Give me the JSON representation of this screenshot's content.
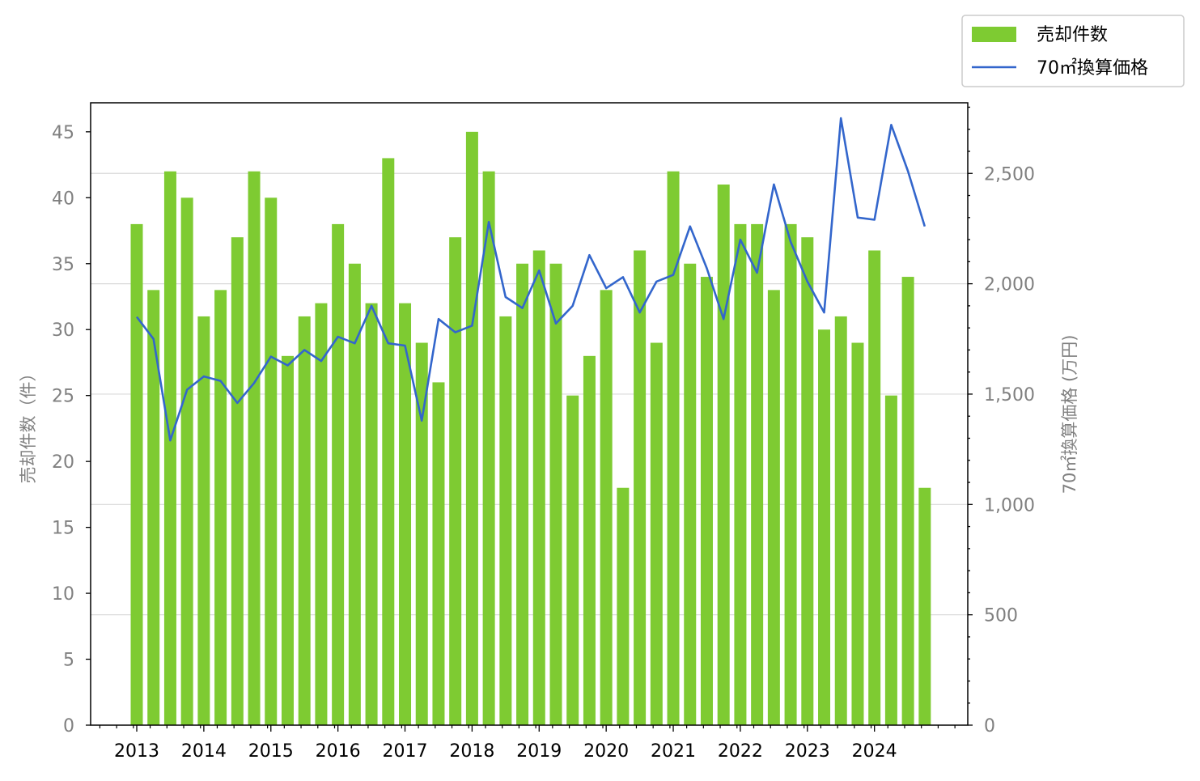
{
  "colors": {
    "bar": "#7ecb32",
    "line": "#3366cc",
    "grid": "#d9d9d9",
    "tick_label_left": "#808080",
    "tick_label_right": "#808080",
    "tick_label_bottom": "#000000"
  },
  "chart_data": {
    "type": "bar",
    "y_left": {
      "label": "売却件数（件）",
      "ylim": [
        0,
        47.2
      ],
      "ticks": [
        0,
        5,
        10,
        15,
        20,
        25,
        30,
        35,
        40,
        45
      ],
      "tick_labels": [
        "0",
        "5",
        "10",
        "15",
        "20",
        "25",
        "30",
        "35",
        "40",
        "45"
      ]
    },
    "y_right": {
      "label": "70㎡換算価格 (万円)",
      "ylim": [
        0,
        2820
      ],
      "ticks": [
        0,
        500,
        1000,
        1500,
        2000,
        2500
      ],
      "tick_labels": [
        "0",
        "500",
        "1,000",
        "1,500",
        "2,000",
        "2,500"
      ]
    },
    "x_axis": {
      "start_year": 2013,
      "year_labels": [
        "2013",
        "2014",
        "2015",
        "2016",
        "2017",
        "2018",
        "2019",
        "2020",
        "2021",
        "2022",
        "2023",
        "2024"
      ]
    },
    "grid": "right-axis horizontal",
    "legend": {
      "position": "top-right outside",
      "entries": [
        {
          "label": "売却件数",
          "kind": "bar"
        },
        {
          "label": "70㎡換算価格",
          "kind": "line"
        }
      ]
    },
    "series": [
      {
        "name": "売却件数",
        "kind": "bar",
        "axis": "left",
        "values": [
          38,
          33,
          42,
          40,
          31,
          33,
          37,
          42,
          40,
          28,
          31,
          32,
          38,
          35,
          32,
          43,
          32,
          29,
          26,
          37,
          45,
          42,
          31,
          35,
          36,
          35,
          25,
          28,
          33,
          18,
          36,
          29,
          42,
          35,
          34,
          41,
          38,
          38,
          33,
          38,
          37,
          30,
          31,
          29,
          36,
          25,
          34,
          18
        ]
      },
      {
        "name": "70㎡換算価格",
        "kind": "line",
        "axis": "right",
        "values": [
          1850,
          1750,
          1290,
          1520,
          1580,
          1560,
          1460,
          1550,
          1670,
          1630,
          1700,
          1650,
          1760,
          1730,
          1900,
          1730,
          1720,
          1380,
          1840,
          1780,
          1810,
          2280,
          1940,
          1890,
          2060,
          1820,
          1900,
          2130,
          1980,
          2030,
          1870,
          2010,
          2040,
          2260,
          2070,
          1840,
          2200,
          2050,
          2450,
          2190,
          2010,
          1870,
          2750,
          2300,
          2290,
          2720,
          2510,
          2260
        ]
      }
    ]
  }
}
